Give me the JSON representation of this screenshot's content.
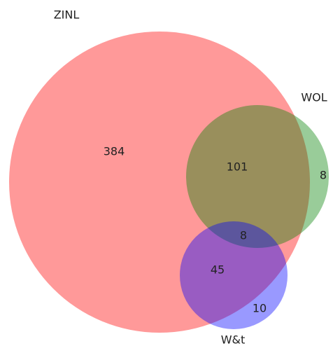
{
  "chart_data": {
    "type": "venn",
    "sets": [
      {
        "name": "ZINL",
        "color": "#ff0000"
      },
      {
        "name": "WOL",
        "color": "#008000"
      },
      {
        "name": "W&t",
        "color": "#0000ff"
      }
    ],
    "regions": [
      {
        "sets": [
          0
        ],
        "value": 384
      },
      {
        "sets": [
          0,
          1
        ],
        "value": 101
      },
      {
        "sets": [
          1
        ],
        "value": 8
      },
      {
        "sets": [
          0,
          1,
          2
        ],
        "value": 8
      },
      {
        "sets": [
          0,
          2
        ],
        "value": 45
      },
      {
        "sets": [
          2
        ],
        "value": 10
      }
    ]
  }
}
